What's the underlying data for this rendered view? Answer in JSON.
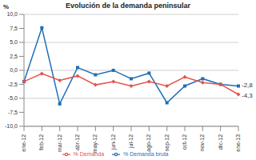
{
  "chart_data": {
    "type": "line",
    "title": "Evolución de la demanda peninsular",
    "y_label": "%",
    "categories": [
      "ene-12",
      "feb-12",
      "mar-12",
      "abr-12",
      "may-12",
      "jun-12",
      "jul-12",
      "ago-12",
      "sep-12",
      "oct-12",
      "nov-12",
      "dic-12",
      "ene-13"
    ],
    "series": [
      {
        "name": "% Demanda bruta",
        "color": "#1f6fb8",
        "marker": "square",
        "values": [
          -2.0,
          7.6,
          -6.0,
          0.5,
          -0.8,
          0.0,
          -1.5,
          -0.5,
          -5.8,
          -2.8,
          -1.5,
          -2.5,
          -2.8
        ]
      },
      {
        "name": "% Demanda",
        "color": "#e5534b",
        "marker": "diamond",
        "values": [
          -2.0,
          -0.6,
          -1.8,
          -1.0,
          -2.6,
          -2.0,
          -2.8,
          -2.0,
          -2.8,
          -1.2,
          -2.2,
          -2.5,
          -4.3
        ]
      }
    ],
    "annotations": [
      "-2,8",
      "-4,3"
    ],
    "ylim": [
      -10,
      10
    ],
    "yticks": [
      {
        "value": -10,
        "label": "-10,0"
      },
      {
        "value": -7.5,
        "label": "-7,5"
      },
      {
        "value": -5,
        "label": "-5,0"
      },
      {
        "value": -2.5,
        "label": "-2,5"
      },
      {
        "value": 0,
        "label": "0,0"
      },
      {
        "value": 2.5,
        "label": "2,5"
      },
      {
        "value": 5,
        "label": "5,0"
      },
      {
        "value": 7.5,
        "label": "7,5"
      },
      {
        "value": 10,
        "label": "10,0"
      }
    ],
    "grid": true,
    "legend": "bottom"
  }
}
